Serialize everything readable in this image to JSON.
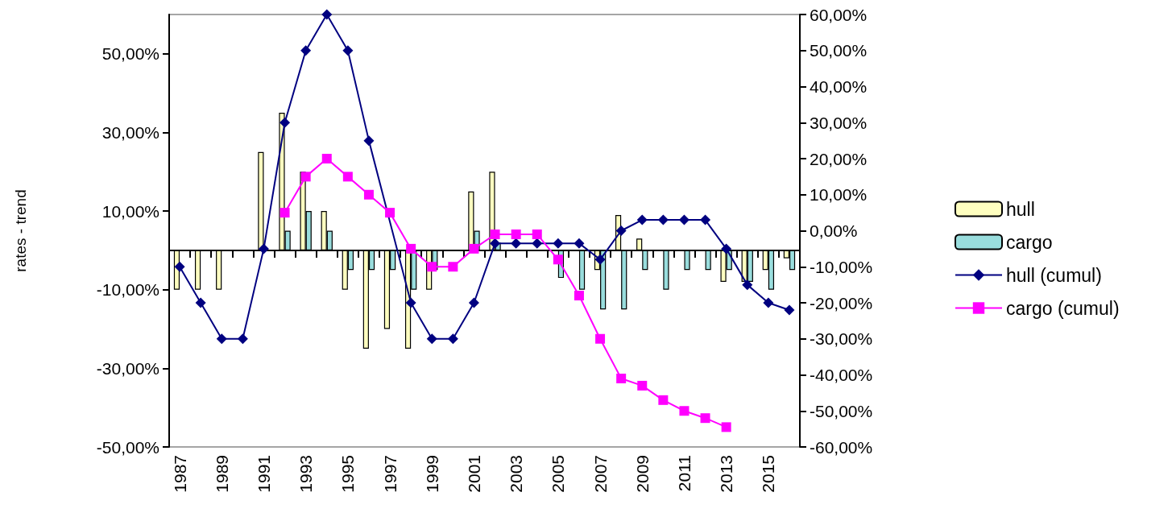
{
  "chart_data": {
    "type": "bar",
    "ylabel": "rates - trend",
    "categories": [
      "1987",
      null,
      "1989",
      null,
      "1991",
      null,
      "1993",
      null,
      "1995",
      null,
      "1997",
      null,
      "1999",
      null,
      "2001",
      null,
      "2003",
      null,
      "2005",
      null,
      "2007",
      null,
      "2009",
      null,
      "2011",
      null,
      "2013",
      null,
      "2015",
      null
    ],
    "series": [
      {
        "name": "hull",
        "color": "#ffffc0",
        "values": [
          -10,
          -10,
          -10,
          0,
          25,
          35,
          20,
          10,
          -10,
          -25,
          -20,
          -25,
          -10,
          0,
          15,
          20,
          0,
          0,
          0,
          0,
          -5,
          9,
          3,
          0,
          0,
          0,
          -8,
          -8,
          -5,
          -2
        ]
      },
      {
        "name": "cargo",
        "color": "#99dddd",
        "values": [
          0,
          0,
          0,
          0,
          0,
          5,
          10,
          5,
          -5,
          -5,
          -5,
          -10,
          -5,
          0,
          5,
          2,
          0,
          0,
          -7,
          -10,
          -15,
          -15,
          -5,
          -10,
          -5,
          -5,
          -5,
          -8,
          -10,
          -5
        ]
      },
      {
        "name": "hull (cumul)",
        "type": "line",
        "axis": "y2",
        "marker": "diamond",
        "color": "#000080",
        "values": [
          -10,
          -20,
          -30,
          -30,
          -5,
          30,
          50,
          60,
          50,
          25,
          null,
          -20,
          -30,
          -30,
          -20,
          -3.5,
          -3.5,
          -3.5,
          -3.5,
          -3.5,
          -8,
          0,
          3,
          3,
          3,
          3,
          -5,
          -15,
          -20,
          -22
        ]
      },
      {
        "name": "cargo (cumul)",
        "type": "line",
        "axis": "y2",
        "marker": "square",
        "color": "#ff00ff",
        "values": [
          null,
          null,
          null,
          null,
          null,
          5,
          15,
          20,
          15,
          10,
          5,
          -5,
          -10,
          -10,
          -5,
          -1,
          -1,
          -1,
          -8,
          -18,
          -30,
          -41,
          -43,
          -47,
          -50,
          -52,
          -54.5,
          null,
          null,
          null
        ]
      }
    ],
    "ylim": [
      -50,
      60
    ],
    "yticks": [
      {
        "value": -50,
        "label": "-50,00%"
      },
      {
        "value": -30,
        "label": "-30,00%"
      },
      {
        "value": -10,
        "label": "-10,00%"
      },
      {
        "value": 10,
        "label": "10,00%"
      },
      {
        "value": 30,
        "label": "30,00%"
      },
      {
        "value": 50,
        "label": "50,00%"
      }
    ],
    "y2lim": [
      -60,
      60
    ],
    "y2ticks": [
      {
        "value": -60,
        "label": "-60,00%"
      },
      {
        "value": -50,
        "label": "-50,00%"
      },
      {
        "value": -40,
        "label": "-40,00%"
      },
      {
        "value": -30,
        "label": "-30,00%"
      },
      {
        "value": -20,
        "label": "-20,00%"
      },
      {
        "value": -10,
        "label": "-10,00%"
      },
      {
        "value": 0,
        "label": "0,00%"
      },
      {
        "value": 10,
        "label": "10,00%"
      },
      {
        "value": 20,
        "label": "20,00%"
      },
      {
        "value": 30,
        "label": "30,00%"
      },
      {
        "value": 40,
        "label": "40,00%"
      },
      {
        "value": 50,
        "label": "50,00%"
      },
      {
        "value": 60,
        "label": "60,00%"
      }
    ],
    "grid": false,
    "legend": "right"
  }
}
